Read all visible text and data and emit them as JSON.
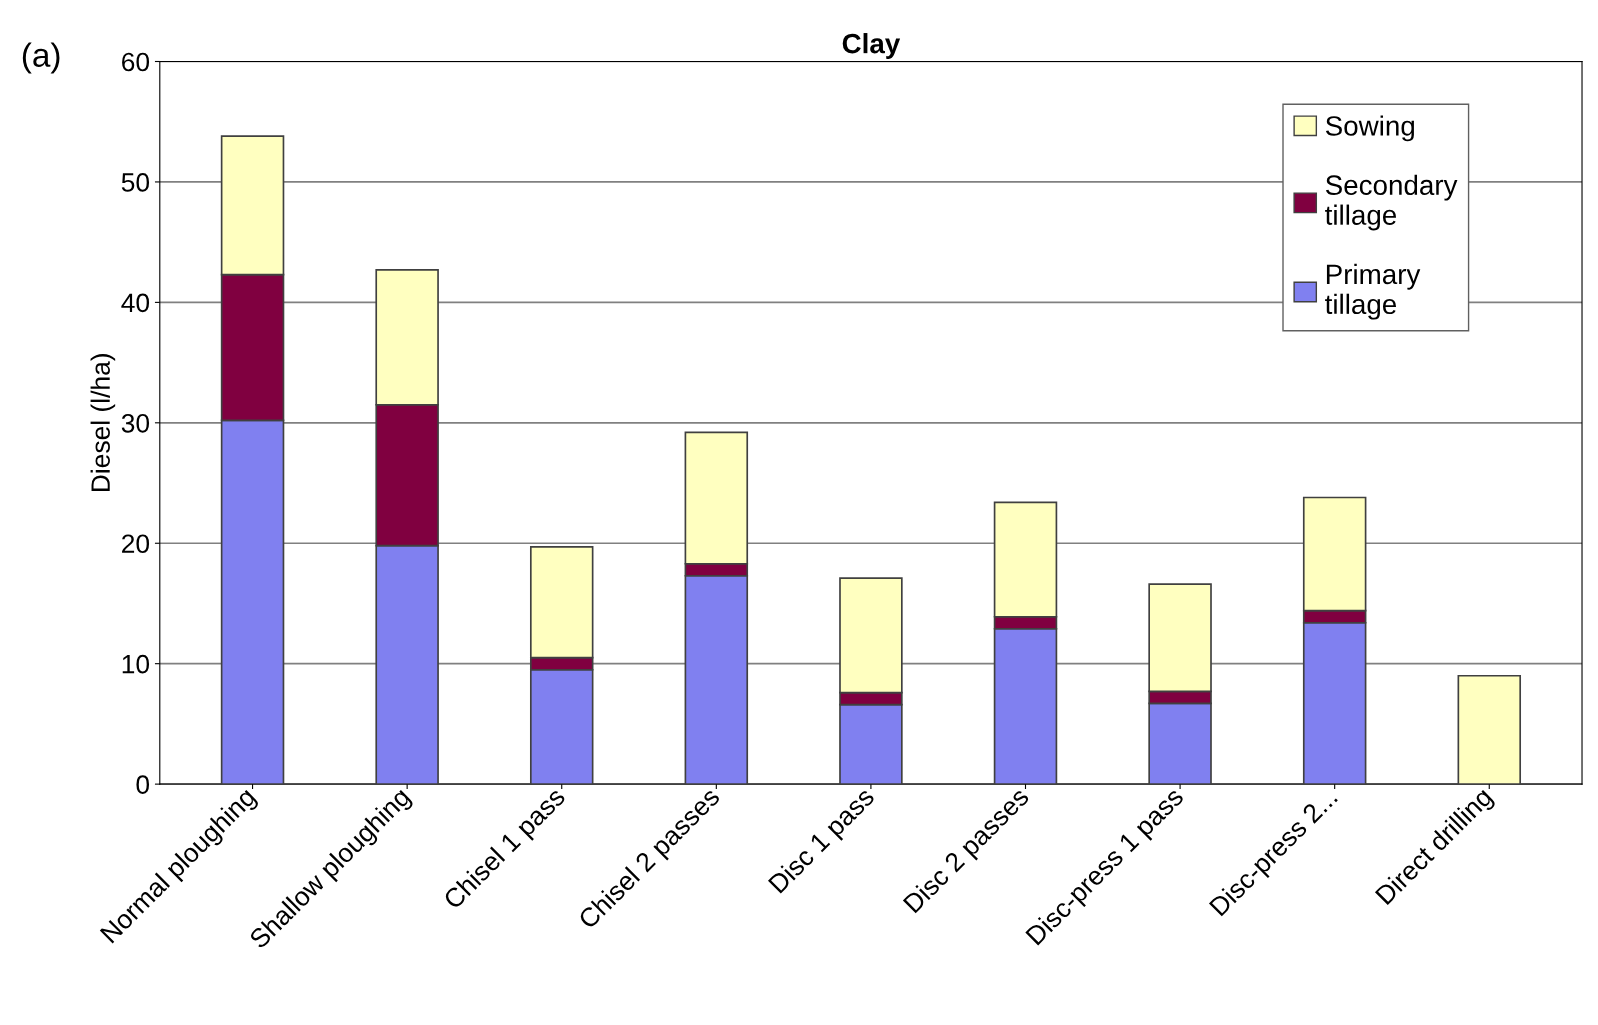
{
  "chart_data": {
    "type": "bar",
    "title": "Clay",
    "ylabel": "Diesel (l/ha)",
    "annotations": [
      "(a)"
    ],
    "categories": [
      "Normal ploughing",
      "Shallow ploughing",
      "Chisel 1 pass",
      "Chisel 2 passes",
      "Disc 1 pass",
      "Disc 2 passes",
      "Disc-press 1 pass",
      "Disc-press 2...",
      "Direct drilling"
    ],
    "stacked": true,
    "series": [
      {
        "name": "Primary tillage",
        "color": "#8080f0",
        "values": [
          30.2,
          19.8,
          9.5,
          17.3,
          6.6,
          12.9,
          6.7,
          13.4,
          0
        ]
      },
      {
        "name": "Secondary tillage",
        "color": "#800040",
        "values": [
          12.1,
          11.7,
          1.0,
          1.0,
          1.0,
          1.0,
          1.0,
          1.0,
          0
        ]
      },
      {
        "name": "Sowing",
        "color": "#ffffc0",
        "values": [
          11.5,
          11.2,
          9.2,
          10.9,
          9.5,
          9.5,
          8.9,
          9.4,
          9.0
        ]
      }
    ],
    "ylim": [
      0,
      60
    ],
    "yticks": [
      0,
      10,
      20,
      30,
      40,
      50,
      60
    ],
    "grid": "y",
    "legend": "top right"
  }
}
